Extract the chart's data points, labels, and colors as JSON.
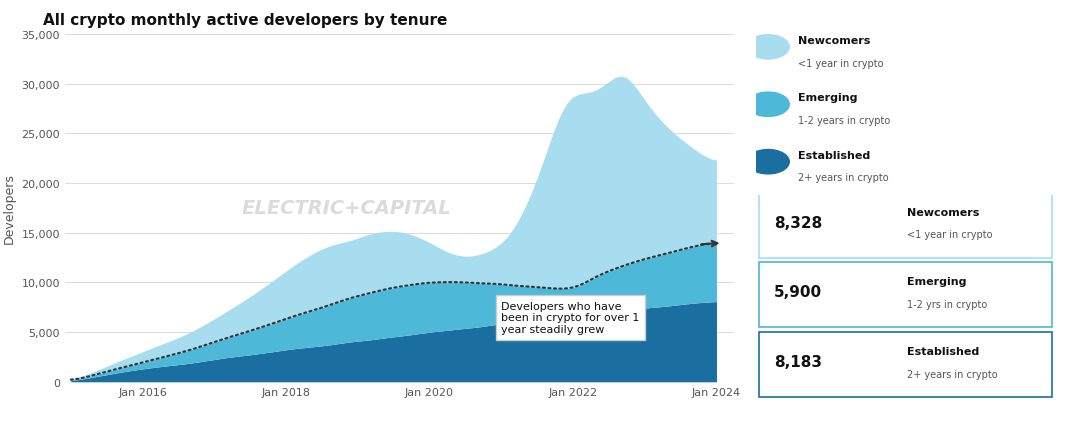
{
  "title": "All crypto monthly active developers by tenure",
  "ylabel": "Developers",
  "background_color": "#ffffff",
  "watermark": "ELECTRIC+CAPITAL",
  "colors": {
    "newcomers": "#a8ddf0",
    "emerging": "#4db8d8",
    "established": "#1a6fa0"
  },
  "legend": {
    "newcomers_label": "Newcomers",
    "newcomers_sub": "<1 year in crypto",
    "emerging_label": "Emerging",
    "emerging_sub": "1-2 years in crypto",
    "established_label": "Established",
    "established_sub": "2+ years in crypto"
  },
  "stats": {
    "newcomers_val": "8,328",
    "newcomers_label": "Newcomers",
    "newcomers_sub": "<1 year in crypto",
    "emerging_val": "5,900",
    "emerging_label": "Emerging",
    "emerging_sub": "1-2 yrs in crypto",
    "established_val": "8,183",
    "established_label": "Established",
    "established_sub": "2+ years in crypto"
  },
  "annotation_text": "Developers who have\nbeen in crypto for over 1\nyear steadily grew",
  "ylim": [
    0,
    35000
  ],
  "yticks": [
    0,
    5000,
    10000,
    15000,
    20000,
    25000,
    30000,
    35000
  ],
  "xtick_labels": [
    "Jan 2016",
    "Jan 2018",
    "Jan 2020",
    "Jan 2022",
    "Jan 2024"
  ]
}
